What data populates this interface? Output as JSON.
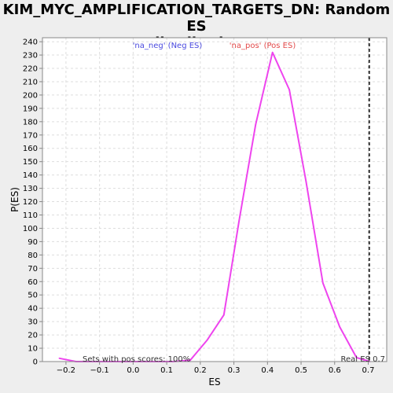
{
  "chart_data": {
    "type": "line",
    "title_lines": [
      "KIM_MYC_AMPLIFICATION_TARGETS_DN: Random ES",
      "distribution"
    ],
    "xlabel": "ES",
    "ylabel": "P(ES)",
    "xlim": [
      -0.27,
      0.755
    ],
    "ylim": [
      0,
      243
    ],
    "xticks": [
      -0.2,
      -0.1,
      0.0,
      0.1,
      0.2,
      0.3,
      0.4,
      0.5,
      0.6,
      0.7
    ],
    "xtick_labels": [
      "−0.2",
      "−0.1",
      "0.0",
      "0.1",
      "0.2",
      "0.3",
      "0.4",
      "0.5",
      "0.6",
      "0.7"
    ],
    "yticks": [
      0,
      10,
      20,
      30,
      40,
      50,
      60,
      70,
      80,
      90,
      100,
      110,
      120,
      130,
      140,
      150,
      160,
      170,
      180,
      190,
      200,
      210,
      220,
      230,
      240
    ],
    "grid": true,
    "series": [
      {
        "color": "#ee44ee",
        "x": [
          -0.22,
          -0.17,
          -0.12,
          -0.07,
          -0.02,
          0.03,
          0.08,
          0.12,
          0.17,
          0.22,
          0.27,
          0.315,
          0.365,
          0.415,
          0.465,
          0.515,
          0.565,
          0.615,
          0.665,
          0.705
        ],
        "y": [
          2.5,
          0,
          0,
          0,
          0,
          0,
          0,
          0,
          1,
          16,
          35,
          105,
          178,
          232,
          204,
          135,
          59,
          26,
          3,
          0
        ]
      }
    ],
    "real_es": 0.703,
    "real_es_label": "Real ES 0.7",
    "legend_neg": "'na_neg' (Neg ES)",
    "legend_pos": "'na_pos' (Pos ES)",
    "legend_neg_color": "#4a4adf",
    "legend_pos_color": "#e34a4a",
    "note": "Sets with pos scores: 100%"
  }
}
